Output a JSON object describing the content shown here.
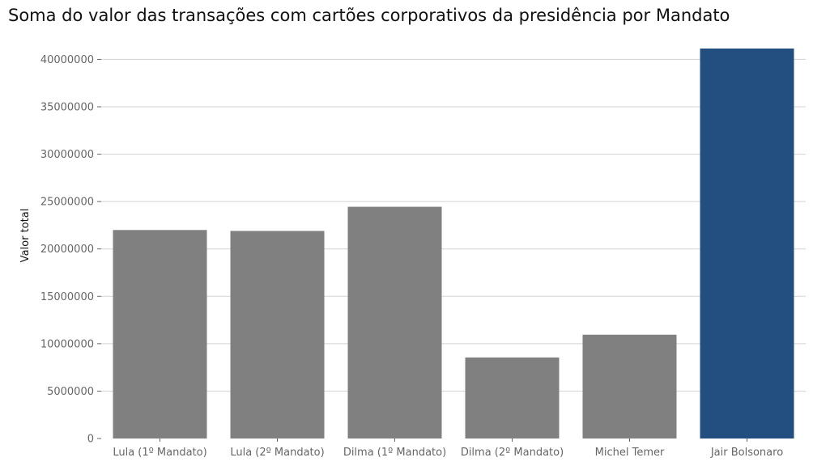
{
  "chart_data": {
    "type": "bar",
    "title": "Soma do valor das transações com cartões corporativos da presidência por Mandato",
    "xlabel": "",
    "ylabel": "Valor total",
    "categories": [
      "Lula (1º Mandato)",
      "Lula (2º Mandato)",
      "Dilma (1º Mandato)",
      "Dilma (2º Mandato)",
      "Michel Temer",
      "Jair Bolsonaro"
    ],
    "values": [
      22000000,
      21900000,
      24450000,
      8550000,
      10950000,
      41150000
    ],
    "bar_colors": [
      "#808080",
      "#808080",
      "#808080",
      "#808080",
      "#808080",
      "#234e80"
    ],
    "ylim": [
      0,
      42000000
    ],
    "yticks": [
      0,
      5000000,
      10000000,
      15000000,
      20000000,
      25000000,
      30000000,
      35000000,
      40000000
    ],
    "ytick_labels": [
      "0",
      "5000000",
      "10000000",
      "15000000",
      "20000000",
      "25000000",
      "30000000",
      "35000000",
      "40000000"
    ],
    "grid": true,
    "grid_color": "#d3d3d3",
    "legend": "none"
  }
}
